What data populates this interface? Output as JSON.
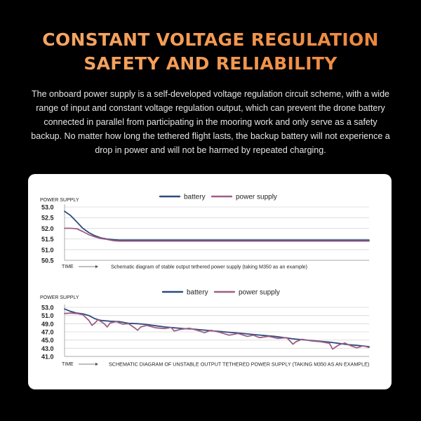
{
  "header": {
    "title_line1": "CONSTANT VOLTAGE REGULATION",
    "title_line2": "SAFETY AND RELIABILITY"
  },
  "intro": {
    "text": "The onboard power supply is a self-developed voltage regulation circuit scheme, with a wide range of input and constant voltage regulation output, which can prevent the drone battery connected in parallel from participating in the mooring work and only serve as a safety backup. No matter how long the tethered flight lasts, the backup battery will not experience a drop in power and will not be harmed by repeated charging."
  },
  "colors": {
    "battery": "#2e4a7e",
    "power_supply": "#9e5e86",
    "grid": "#d6d6d6",
    "text": "#222222"
  },
  "chart_data": [
    {
      "type": "line",
      "ylabel": "POWER SUPPLY",
      "xlabel": "TIME",
      "caption": "Schematic diagram of stable output tethered power supply (taking M350 as an example)",
      "ylim": [
        50.5,
        53.0
      ],
      "yticks": [
        50.5,
        51.0,
        51.5,
        52.0,
        52.5,
        53.0
      ],
      "ytick_labels": [
        "50.5",
        "51.0",
        "51.5",
        "52.0",
        "52.5",
        "53.0"
      ],
      "grid": true,
      "legend_position": "top-center",
      "xlim": [
        0,
        100
      ],
      "series": [
        {
          "name": "battery",
          "color": "#2e4a7e",
          "x": [
            0,
            2,
            4,
            6,
            8,
            10,
            12,
            14,
            16,
            18,
            20,
            25,
            30,
            40,
            60,
            80,
            100
          ],
          "y": [
            52.8,
            52.6,
            52.3,
            52.0,
            51.8,
            51.65,
            51.55,
            51.5,
            51.47,
            51.45,
            51.45,
            51.45,
            51.45,
            51.45,
            51.45,
            51.45,
            51.45
          ]
        },
        {
          "name": "power supply",
          "color": "#9e5e86",
          "x": [
            0,
            2,
            4,
            6,
            8,
            10,
            12,
            14,
            16,
            18,
            20,
            25,
            30,
            40,
            60,
            80,
            100
          ],
          "y": [
            52.0,
            52.0,
            51.98,
            51.85,
            51.7,
            51.6,
            51.52,
            51.48,
            51.42,
            51.4,
            51.4,
            51.4,
            51.4,
            51.4,
            51.4,
            51.4,
            51.4
          ]
        }
      ]
    },
    {
      "type": "line",
      "ylabel": "POWER SUPPLY",
      "xlabel": "TIME",
      "caption": "SCHEMATIC DIAGRAM OF UNSTABLE OUTPUT TETHERED POWER SUPPLY (TAKING M350 AS AN EXAMPLE)",
      "ylim": [
        41.0,
        53.0
      ],
      "yticks": [
        41.0,
        43.0,
        45.0,
        47.0,
        49.0,
        51.0,
        53.0
      ],
      "ytick_labels": [
        "41.0",
        "43.0",
        "45.0",
        "47.0",
        "49.0",
        "51.0",
        "53.0"
      ],
      "grid": true,
      "legend_position": "top-center",
      "xlim": [
        0,
        100
      ],
      "series": [
        {
          "name": "battery",
          "color": "#2e4a7e",
          "x": [
            0,
            2,
            4,
            6,
            8,
            10,
            12,
            15,
            18,
            21,
            24,
            27,
            30,
            33,
            36,
            39,
            42,
            45,
            48,
            51,
            54,
            57,
            60,
            63,
            66,
            69,
            72,
            75,
            78,
            81,
            84,
            87,
            90,
            93,
            96,
            100
          ],
          "y": [
            52.6,
            52.0,
            51.6,
            51.4,
            51.0,
            50.2,
            49.8,
            49.6,
            49.5,
            49.1,
            49.0,
            48.8,
            48.5,
            48.2,
            48.0,
            47.8,
            47.7,
            47.5,
            47.3,
            47.1,
            46.9,
            46.7,
            46.5,
            46.3,
            46.1,
            45.9,
            45.6,
            45.3,
            45.1,
            44.9,
            44.7,
            44.5,
            44.2,
            43.9,
            43.7,
            43.4
          ]
        },
        {
          "name": "power supply",
          "color": "#9e5e86",
          "x": [
            0,
            2,
            4,
            6,
            8,
            9,
            10,
            11,
            13,
            14,
            15,
            17,
            19,
            21,
            23,
            24,
            25,
            27,
            30,
            33,
            35,
            36,
            38,
            41,
            44,
            46,
            48,
            51,
            54,
            57,
            60,
            62,
            64,
            67,
            70,
            73,
            75,
            76,
            78,
            81,
            84,
            87,
            88,
            90,
            92,
            94,
            96,
            98,
            100
          ],
          "y": [
            51.5,
            51.6,
            51.5,
            51.2,
            49.8,
            48.6,
            49.2,
            50.0,
            49.0,
            48.2,
            49.2,
            49.5,
            48.9,
            49.0,
            48.0,
            47.4,
            48.2,
            48.6,
            48.0,
            47.8,
            48.1,
            47.2,
            47.6,
            47.9,
            47.3,
            46.8,
            47.4,
            46.9,
            46.2,
            46.6,
            45.9,
            46.2,
            45.6,
            45.9,
            45.4,
            45.6,
            44.0,
            44.6,
            45.2,
            44.8,
            44.6,
            44.2,
            42.8,
            43.8,
            44.3,
            43.6,
            43.1,
            43.6,
            43.2
          ]
        }
      ]
    }
  ]
}
